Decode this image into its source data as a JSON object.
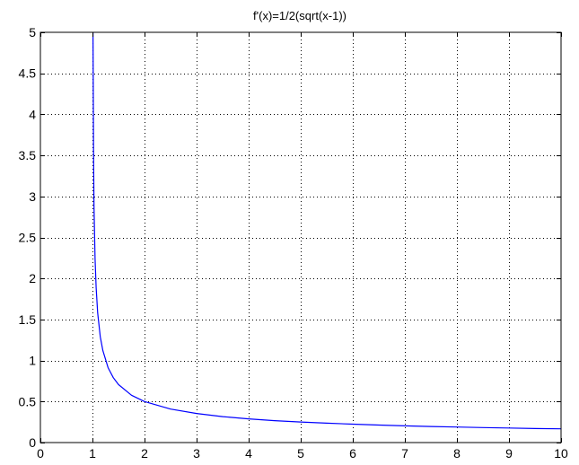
{
  "chart_data": {
    "type": "line",
    "title": "f'(x)=1/2(sqrt(x-1))",
    "xlabel": "",
    "ylabel": "",
    "xlim": [
      0,
      10
    ],
    "ylim": [
      0,
      5
    ],
    "x_ticks": [
      0,
      1,
      2,
      3,
      4,
      5,
      6,
      7,
      8,
      9,
      10
    ],
    "x_tick_labels": [
      "0",
      "1",
      "2",
      "3",
      "4",
      "5",
      "6",
      "7",
      "8",
      "9",
      "10"
    ],
    "y_ticks": [
      0,
      0.5,
      1,
      1.5,
      2,
      2.5,
      3,
      3.5,
      4,
      4.5,
      5
    ],
    "y_tick_labels": [
      "0",
      "0.5",
      "1",
      "1.5",
      "2",
      "2.5",
      "3",
      "3.5",
      "4",
      "4.5",
      "5"
    ],
    "grid": true,
    "grid_style": "dotted",
    "series": [
      {
        "color": "#0000ff",
        "x": [
          1.01,
          1.02,
          1.03,
          1.05,
          1.07,
          1.1,
          1.15,
          1.2,
          1.3,
          1.4,
          1.5,
          1.75,
          2,
          2.5,
          3,
          3.5,
          4,
          4.5,
          5,
          5.5,
          6,
          6.5,
          7,
          7.5,
          8,
          8.5,
          9,
          9.5,
          10
        ],
        "y": [
          5.0,
          3.54,
          2.89,
          2.24,
          1.89,
          1.58,
          1.29,
          1.12,
          0.913,
          0.791,
          0.707,
          0.577,
          0.5,
          0.408,
          0.354,
          0.316,
          0.289,
          0.267,
          0.25,
          0.236,
          0.224,
          0.213,
          0.204,
          0.196,
          0.189,
          0.183,
          0.177,
          0.171,
          0.167
        ]
      }
    ]
  }
}
